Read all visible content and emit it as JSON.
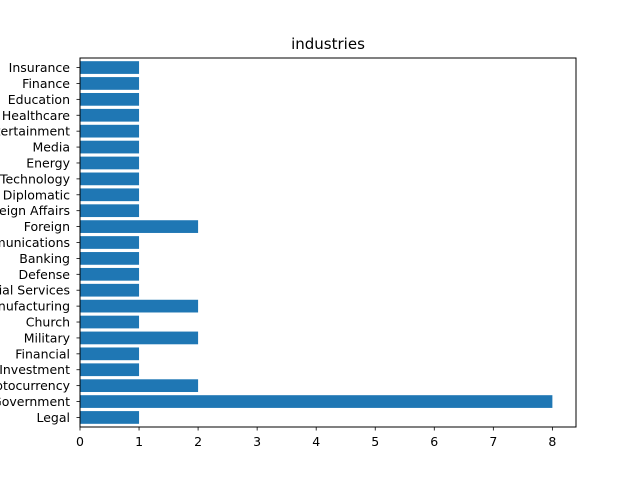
{
  "chart_data": {
    "type": "bar",
    "orientation": "horizontal",
    "title": "industries",
    "xlabel": "",
    "ylabel": "",
    "xlim": [
      0,
      8.4
    ],
    "x_ticks": [
      0,
      1,
      2,
      3,
      4,
      5,
      6,
      7,
      8
    ],
    "grid": false,
    "legend": "none",
    "bar_color": "#1f77b4",
    "categories": [
      "Legal",
      "Government",
      "Cryptocurrency",
      "Investment",
      "Financial",
      "Military",
      "Church",
      "Manufacturing",
      "Financial Services",
      "Defense",
      "Banking",
      "Telecommunications",
      "Foreign",
      "Foreign Affairs",
      "Diplomatic",
      "Technology",
      "Energy",
      "Media",
      "Entertainment",
      "Healthcare",
      "Education",
      "Finance",
      "Insurance"
    ],
    "values": [
      1,
      8,
      2,
      1,
      1,
      2,
      1,
      2,
      1,
      1,
      1,
      1,
      2,
      1,
      1,
      1,
      1,
      1,
      1,
      1,
      1,
      1,
      1
    ]
  }
}
